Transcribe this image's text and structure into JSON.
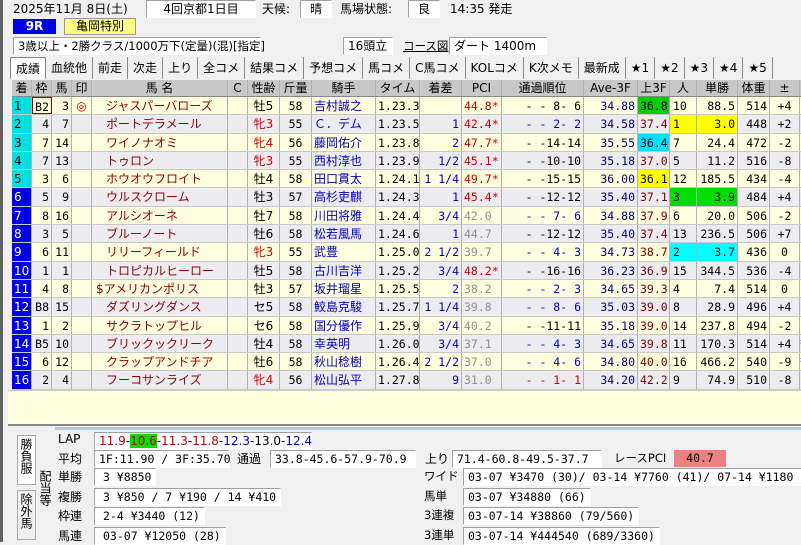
{
  "header": {
    "date": "2025年11月 8日(土)",
    "meeting": "4回京都1日目",
    "weather_label": "天候:",
    "weather": "晴",
    "track_label": "馬場状態:",
    "track": "良",
    "post_time": "14:35 発走",
    "race_no": "9R",
    "race_name": "亀岡特別",
    "conditions": "3歳以上・2勝クラス/1000万下(定量)(混)[指定]",
    "runners": "16頭立",
    "course_link": "コース図",
    "course": "ダート 1400m"
  },
  "tabs": [
    "成績",
    "血統他",
    "前走",
    "次走",
    "上り",
    "全コメ",
    "結果コメ",
    "予想コメ",
    "馬コメ",
    "C馬コメ",
    "KOLコメ",
    "K次メモ",
    "最新成",
    "★1",
    "★2",
    "★3",
    "★4",
    "★5"
  ],
  "columns": [
    "着",
    "枠",
    "馬",
    "印",
    "馬 名",
    "C",
    "性齢",
    "斤量",
    "騎手",
    "タイム",
    "着差",
    "PCI",
    "通過順位",
    "Ave-3F",
    "上3F",
    "人",
    "単勝",
    "体重",
    "±"
  ],
  "colors": {
    "finish_top": "#00e0e0",
    "finish_other": "#0000e0",
    "row_odd": "#ffffe0",
    "row_even": "#ebebf0",
    "fav1": "#ffff00",
    "fav2": "#00ffff",
    "fav3": "#00e000",
    "mare": "#e00000",
    "jockey": "#0000c0",
    "name": "#900000"
  },
  "rows": [
    {
      "pos": "1",
      "frame": "B2",
      "num": "3",
      "mark": "◎",
      "name": "ジャスパーバローズ",
      "sex": "牡5",
      "wt": "58",
      "jockey": "吉村誠之",
      "time": "1.23.3",
      "margin": "",
      "pci": "44.8*",
      "pass": "-  - 8- 6",
      "ave": "34.88",
      "l3f": "36.8",
      "l3f_hl": "#00d000",
      "pop": "10",
      "odds": "88.5",
      "odds_hl": "",
      "body": "514",
      "diff": "+4",
      "extra": ""
    },
    {
      "pos": "2",
      "frame": "4",
      "num": "7",
      "mark": "",
      "name": "ポートデラメール",
      "sex": "牝3",
      "wt": "55",
      "jockey": "Ｃ．デム",
      "time": "1.23.5",
      "margin": "1",
      "pci": "42.4*",
      "pass": "-  - 2- 2",
      "ave": "34.58",
      "l3f": "37.4",
      "l3f_hl": "",
      "pop": "1",
      "odds": "3.0",
      "odds_hl": "#ffff00",
      "body": "448",
      "diff": "+2",
      "extra": ""
    },
    {
      "pos": "3",
      "frame": "7",
      "num": "14",
      "mark": "",
      "name": "ワイノナオミ",
      "sex": "牝4",
      "wt": "56",
      "jockey": "藤岡佑介",
      "time": "1.23.8",
      "margin": "2",
      "pci": "47.7*",
      "pass": "-  -14-14",
      "ave": "35.55",
      "l3f": "36.4",
      "l3f_hl": "#00e0ff",
      "pop": "7",
      "odds": "24.4",
      "odds_hl": "",
      "body": "472",
      "diff": "-2",
      "extra": ""
    },
    {
      "pos": "4",
      "frame": "7",
      "num": "13",
      "mark": "",
      "name": "トゥロン",
      "sex": "牝3",
      "wt": "55",
      "jockey": "西村淳也",
      "time": "1.23.9",
      "margin": "1/2",
      "pci": "45.1*",
      "pass": "-  -10-10",
      "ave": "35.18",
      "l3f": "37.0",
      "l3f_hl": "",
      "pop": "5",
      "odds": "11.2",
      "odds_hl": "",
      "body": "516",
      "diff": "-8",
      "extra": ""
    },
    {
      "pos": "5",
      "frame": "3",
      "num": "6",
      "mark": "",
      "name": "ホウオウフロイト",
      "sex": "牡4",
      "wt": "58",
      "jockey": "田口貫太",
      "time": "1.24.1",
      "margin": "1 1/4",
      "pci": "49.7*",
      "pass": "-  -15-15",
      "ave": "36.00",
      "l3f": "36.1",
      "l3f_hl": "#ffff00",
      "pop": "12",
      "odds": "185.5",
      "odds_hl": "",
      "body": "434",
      "diff": "-4",
      "extra": ""
    },
    {
      "pos": "6",
      "frame": "5",
      "num": "9",
      "mark": "",
      "name": "ウルスクローム",
      "sex": "牡3",
      "wt": "57",
      "jockey": "高杉吏麒",
      "time": "1.24.3",
      "margin": "1",
      "pci": "45.4*",
      "pass": "-  -12-12",
      "ave": "35.40",
      "l3f": "37.1",
      "l3f_hl": "",
      "pop": "3",
      "odds": "3.9",
      "odds_hl": "#00e000",
      "body": "484",
      "diff": "+4",
      "extra": ""
    },
    {
      "pos": "7",
      "frame": "8",
      "num": "16",
      "mark": "",
      "name": "アルシオーネ",
      "sex": "牡7",
      "wt": "58",
      "jockey": "川田将雅",
      "time": "1.24.4",
      "margin": "3/4",
      "pci": "42.0",
      "pass": "-  - 7- 6",
      "ave": "34.88",
      "l3f": "37.9",
      "l3f_hl": "",
      "pop": "6",
      "odds": "20.0",
      "odds_hl": "",
      "body": "506",
      "diff": "-2",
      "extra": ""
    },
    {
      "pos": "8",
      "frame": "3",
      "num": "5",
      "mark": "",
      "name": "ブルーノート",
      "sex": "牡6",
      "wt": "58",
      "jockey": "松若風馬",
      "time": "1.24.6",
      "margin": "1",
      "pci": "44.7",
      "pass": "-  -12-12",
      "ave": "35.40",
      "l3f": "37.4",
      "l3f_hl": "",
      "pop": "13",
      "odds": "236.5",
      "odds_hl": "",
      "body": "506",
      "diff": "+7",
      "extra": ""
    },
    {
      "pos": "9",
      "frame": "6",
      "num": "11",
      "mark": "",
      "name": "リリーフィールド",
      "sex": "牝3",
      "wt": "55",
      "jockey": "武豊",
      "time": "1.25.0",
      "margin": "2 1/2",
      "pci": "39.7",
      "pass": "-  - 4- 3",
      "ave": "34.73",
      "l3f": "38.7",
      "l3f_hl": "",
      "pop": "2",
      "odds": "3.7",
      "odds_hl": "#00ffff",
      "body": "436",
      "diff": "0",
      "extra": ""
    },
    {
      "pos": "10",
      "frame": "1",
      "num": "1",
      "mark": "",
      "name": "トロピカルヒーロー",
      "sex": "牡5",
      "wt": "58",
      "jockey": "古川吉洋",
      "time": "1.25.2",
      "margin": "3/4",
      "pci": "48.2*",
      "pass": "-  -16-16",
      "ave": "36.23",
      "l3f": "36.9",
      "l3f_hl": "",
      "pop": "15",
      "odds": "344.5",
      "odds_hl": "",
      "body": "536",
      "diff": "-4",
      "extra": ""
    },
    {
      "pos": "11",
      "frame": "4",
      "num": "8",
      "mark": "",
      "name": "$アメリカンポリス",
      "sex": "牡3",
      "wt": "57",
      "jockey": "坂井瑠星",
      "time": "1.25.5",
      "margin": "2",
      "pci": "38.2",
      "pass": "-  - 2- 3",
      "ave": "34.65",
      "l3f": "39.3",
      "l3f_hl": "",
      "pop": "4",
      "odds": "7.4",
      "odds_hl": "",
      "body": "514",
      "diff": "0",
      "extra": ""
    },
    {
      "pos": "12",
      "frame": "B8",
      "num": "15",
      "mark": "",
      "name": "ダズリングダンス",
      "sex": "セ5",
      "wt": "58",
      "jockey": "鮫島克駿",
      "time": "1.25.7",
      "margin": "1 1/4",
      "pci": "39.8",
      "pass": "-  - 8- 6",
      "ave": "35.03",
      "l3f": "39.0",
      "l3f_hl": "",
      "pop": "8",
      "odds": "28.9",
      "odds_hl": "",
      "body": "496",
      "diff": "+4",
      "extra": ""
    },
    {
      "pos": "13",
      "frame": "1",
      "num": "2",
      "mark": "",
      "name": "サクラトップヒル",
      "sex": "セ6",
      "wt": "58",
      "jockey": "国分優作",
      "time": "1.25.9",
      "margin": "3/4",
      "pci": "40.2",
      "pass": "-  -11-11",
      "ave": "35.18",
      "l3f": "39.0",
      "l3f_hl": "",
      "pop": "14",
      "odds": "237.8",
      "odds_hl": "",
      "body": "494",
      "diff": "-2",
      "extra": ""
    },
    {
      "pos": "14",
      "frame": "B5",
      "num": "10",
      "mark": "",
      "name": "ブリックックリーク",
      "sex": "牡4",
      "wt": "58",
      "jockey": "幸英明",
      "time": "1.26.0",
      "margin": "3/4",
      "pci": "37.1",
      "pass": "-  - 4- 3",
      "ave": "34.65",
      "l3f": "39.8",
      "l3f_hl": "",
      "pop": "11",
      "odds": "170.3",
      "odds_hl": "",
      "body": "514",
      "diff": "+4",
      "extra": "*"
    },
    {
      "pos": "15",
      "frame": "6",
      "num": "12",
      "mark": "",
      "name": "クラップアンドチア",
      "sex": "牡6",
      "wt": "58",
      "jockey": "秋山稔樹",
      "time": "1.26.4",
      "margin": "2 1/2",
      "pci": "37.0",
      "pass": "-  - 4- 6",
      "ave": "34.80",
      "l3f": "40.0",
      "l3f_hl": "",
      "pop": "16",
      "odds": "466.2",
      "odds_hl": "",
      "body": "540",
      "diff": "-9",
      "extra": "*"
    },
    {
      "pos": "16",
      "frame": "2",
      "num": "4",
      "mark": "",
      "name": "フーコサンライズ",
      "sex": "牝4",
      "wt": "56",
      "jockey": "松山弘平",
      "time": "1.27.8",
      "margin": "9",
      "pci": "31.0",
      "pass": "-  - 1- 1",
      "ave": "34.20",
      "l3f": "42.2",
      "l3f_hl": "",
      "pop": "9",
      "odds": "74.9",
      "odds_hl": "",
      "body": "510",
      "diff": "-8",
      "extra": ""
    }
  ],
  "bottom": {
    "side_tabs": [
      "勝負服",
      "除外馬"
    ],
    "side_label": "配当等",
    "lap_label": "LAP",
    "laps": [
      {
        "v": "11.9",
        "c": "#c00000"
      },
      {
        "v": "10.6",
        "c": "#c00000",
        "hl": "#00e000"
      },
      {
        "v": "11.3",
        "c": "#c00000"
      },
      {
        "v": "11.8",
        "c": "#c00000"
      },
      {
        "v": "12.3",
        "c": "#0000c0"
      },
      {
        "v": "13.0",
        "c": "#000000"
      },
      {
        "v": "12.4",
        "c": "#0000c0"
      }
    ],
    "avg_label": "平均",
    "avg": "1F:11.90 / 3F:35.70",
    "pass_label": "通過",
    "pass": "33.8-45.6-57.9-70.9",
    "agari_label": "上り",
    "agari": "71.4-60.8-49.5-37.7",
    "pci_label": "レースPCI",
    "pci": "40.7",
    "payouts": [
      {
        "label": "単勝",
        "value": "3 ¥8850"
      },
      {
        "label": "複勝",
        "value": "3 ¥850 / 7 ¥190 / 14 ¥410"
      },
      {
        "label": "枠連",
        "value": "2-4 ¥3440 (12)"
      },
      {
        "label": "馬連",
        "value": "03-07 ¥12050 (28)"
      }
    ],
    "payouts_right": [
      {
        "label": "ワイド",
        "value": "03-07 ¥3470 (30)/ 03-14 ¥7760 (41)/ 07-14 ¥1180"
      },
      {
        "label": "馬単",
        "value": "03-07 ¥34880 (66)"
      },
      {
        "label": "3連複",
        "value": "03-07-14 ¥38860 (79/560)"
      },
      {
        "label": "3連単",
        "value": "03-07-14 ¥444540 (689/3360)"
      }
    ]
  }
}
